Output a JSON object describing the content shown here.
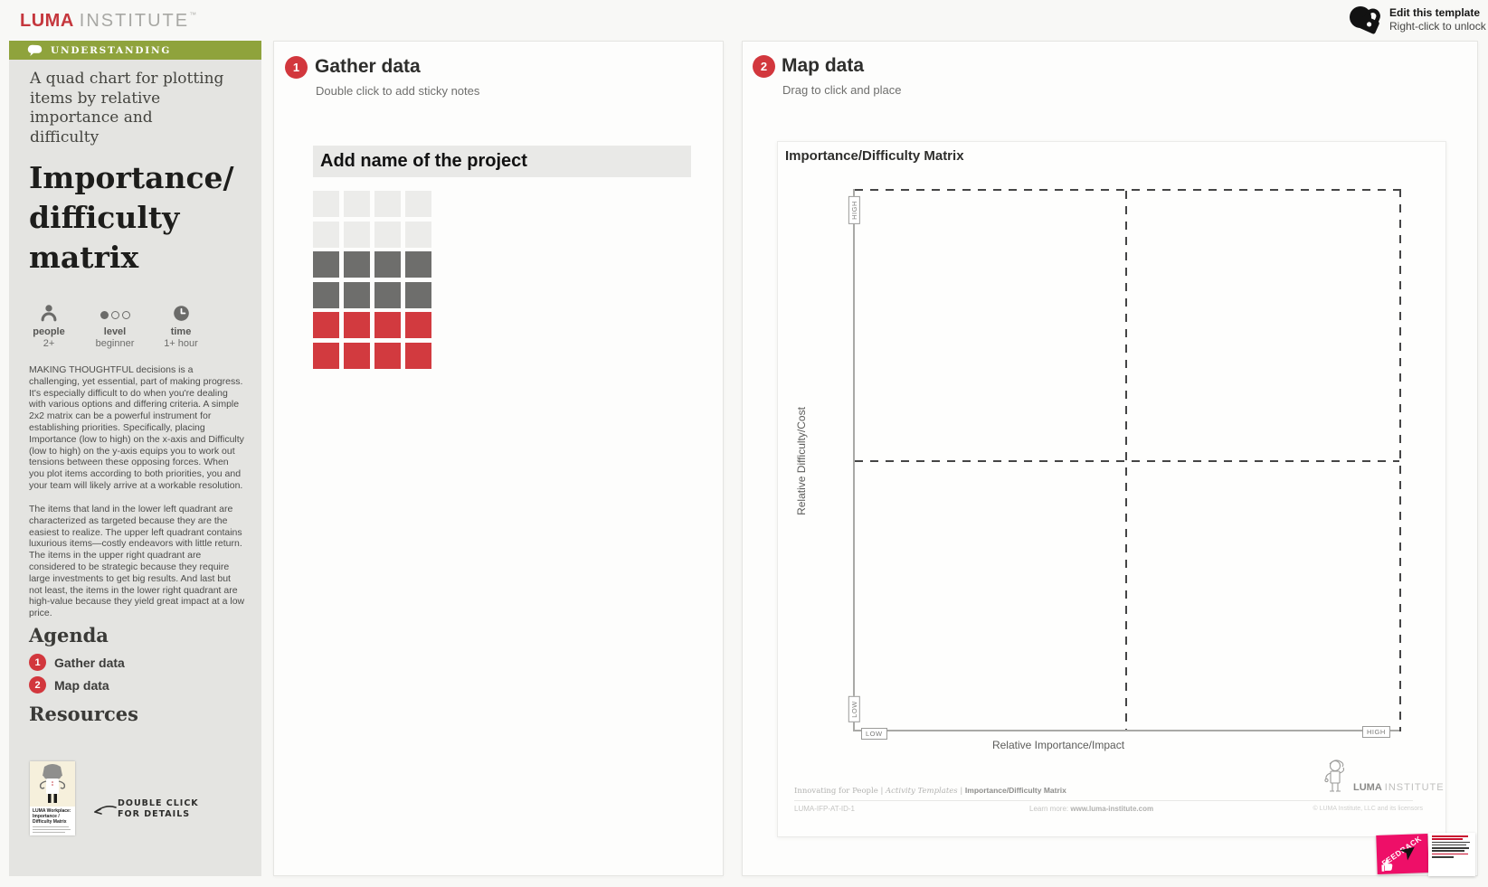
{
  "topbar": {
    "brand_luma": "LUMA",
    "brand_institute": "INSTITUTE",
    "brand_tm": "™",
    "edit_template_title": "Edit this template",
    "edit_template_subtitle": "Right-click to unlock"
  },
  "sidebar": {
    "category": "UNDERSTANDING",
    "tagline": "A quad chart for plotting items by relative importance and difficulty",
    "title": "Importance/ difficulty matrix",
    "meta": [
      {
        "icon": "people-icon",
        "label": "people",
        "value": "2+"
      },
      {
        "icon": "level-icon",
        "label": "level",
        "value": "beginner"
      },
      {
        "icon": "time-icon",
        "label": "time",
        "value": "1+ hour"
      }
    ],
    "paragraph_1": "MAKING THOUGHTFUL decisions is a challenging, yet essential, part of making progress. It's especially difficult to do when you're dealing with various options and differing criteria. A simple 2x2 matrix can be a powerful instrument for establishing priorities. Specifically, placing Importance (low to high) on the x-axis and Difficulty (low to high) on the y-axis equips you to work out tensions between these opposing forces. When you plot items according to both priorities, you and your team will likely arrive at a workable resolution.",
    "paragraph_2": "The items that land in the lower left quadrant are characterized as targeted because they are the easiest to realize. The upper left quadrant contains luxurious items—costly endeavors with little return. The items in the upper right quadrant are considered to be strategic because they require large investments to get big results. And last but not least, the items in the lower right quadrant are high-value because they yield great impact at a low price.",
    "agenda": {
      "heading": "Agenda",
      "items": [
        {
          "num": "1",
          "label": "Gather data"
        },
        {
          "num": "2",
          "label": "Map data"
        }
      ]
    },
    "resources": {
      "heading": "Resources",
      "card_title": "LUMA Workplace: Importance / Difficulty Matrix",
      "hint_line1": "DOUBLE CLICK",
      "hint_line2": "FOR DETAILS"
    }
  },
  "gather_panel": {
    "step_num": "1",
    "title": "Gather data",
    "subtitle": "Double click to add sticky notes",
    "project_header": "Add name of the project",
    "sticky_grid": {
      "rows": 6,
      "cols": 4,
      "row_colors": [
        "#ececea",
        "#ececea",
        "#6e6e6c",
        "#6e6e6c",
        "#d23a3f",
        "#d23a3f"
      ]
    }
  },
  "map_panel": {
    "step_num": "2",
    "title": "Map data",
    "subtitle": "Drag to click and place",
    "matrix": {
      "title": "Importance/Difficulty Matrix",
      "y_axis_label": "Relative Difficulty/Cost",
      "x_axis_label": "Relative Importance/Impact",
      "y_low": "LOW",
      "y_high": "HIGH",
      "x_low": "LOW",
      "x_high": "HIGH"
    },
    "footer": {
      "breadcrumb_1": "Innovating for People",
      "divider": "|",
      "breadcrumb_2": "Activity Templates",
      "breadcrumb_3": "Importance/Difficulty Matrix",
      "code": "LUMA-IFP-AT-ID-1",
      "learn_more_label": "Learn more:",
      "learn_more_url": "www.luma-institute.com",
      "brand_luma": "LUMA",
      "brand_institute": "INSTITUTE",
      "copyright": "© LUMA Institute, LLC and its licensors"
    }
  },
  "feedback": {
    "label": "FEEDBACK"
  },
  "colors": {
    "accent_red": "#d2373d",
    "category_green": "#8fa33c",
    "feedback_pink": "#ee0f68"
  }
}
